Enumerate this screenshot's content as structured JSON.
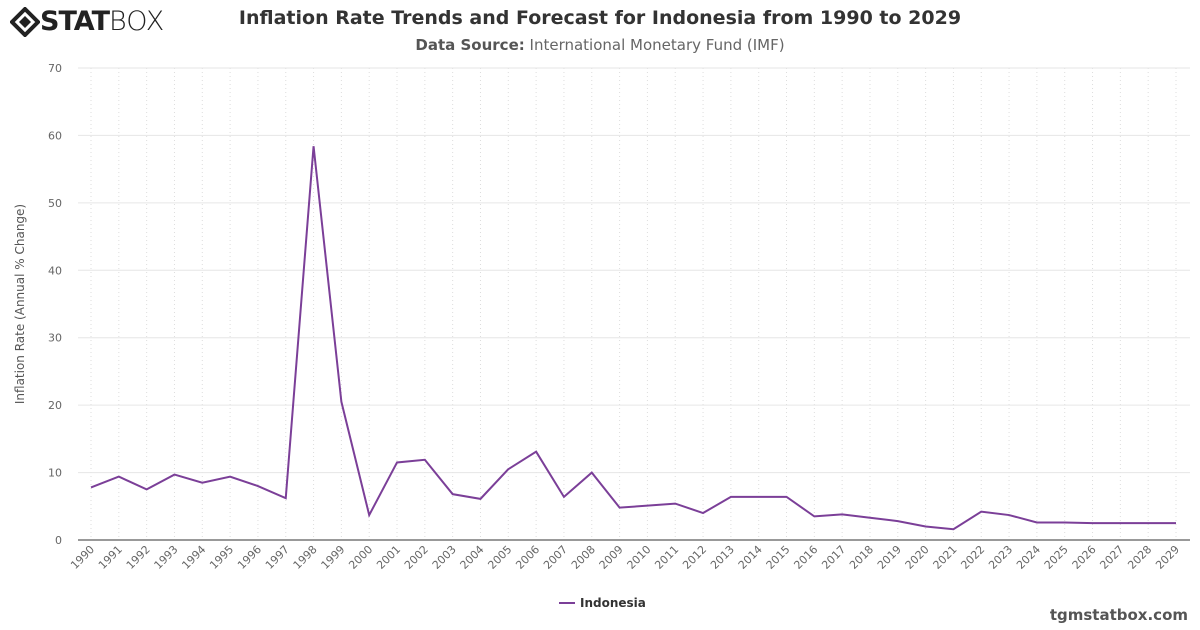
{
  "logo": {
    "text_bold": "STAT",
    "text_light": "BOX"
  },
  "header": {
    "title": "Inflation Rate Trends and Forecast for Indonesia from 1990 to 2029",
    "source_label": "Data Source:",
    "source_value": "International Monetary Fund (IMF)"
  },
  "footer": {
    "site": "tgmstatbox.com"
  },
  "chart_data": {
    "type": "line",
    "title": "Inflation Rate Trends and Forecast for Indonesia from 1990 to 2029",
    "xlabel": "",
    "ylabel": "Inflation Rate (Annual % Change)",
    "ylim": [
      0,
      70
    ],
    "yticks": [
      0,
      10,
      20,
      30,
      40,
      50,
      60,
      70
    ],
    "grid": true,
    "legend": "bottom-center",
    "x": [
      1990,
      1991,
      1992,
      1993,
      1994,
      1995,
      1996,
      1997,
      1998,
      1999,
      2000,
      2001,
      2002,
      2003,
      2004,
      2005,
      2006,
      2007,
      2008,
      2009,
      2010,
      2011,
      2012,
      2013,
      2014,
      2015,
      2016,
      2017,
      2018,
      2019,
      2020,
      2021,
      2022,
      2023,
      2024,
      2025,
      2026,
      2027,
      2028,
      2029
    ],
    "series": [
      {
        "name": "Indonesia",
        "color": "#7b3f98",
        "values": [
          7.8,
          9.4,
          7.5,
          9.7,
          8.5,
          9.4,
          8.0,
          6.2,
          58.4,
          20.5,
          3.7,
          11.5,
          11.9,
          6.8,
          6.1,
          10.5,
          13.1,
          6.4,
          10.0,
          4.8,
          5.1,
          5.4,
          4.0,
          6.4,
          6.4,
          6.4,
          3.5,
          3.8,
          3.3,
          2.8,
          2.0,
          1.6,
          4.2,
          3.7,
          2.6,
          2.6,
          2.5,
          2.5,
          2.5,
          2.5
        ]
      }
    ]
  }
}
